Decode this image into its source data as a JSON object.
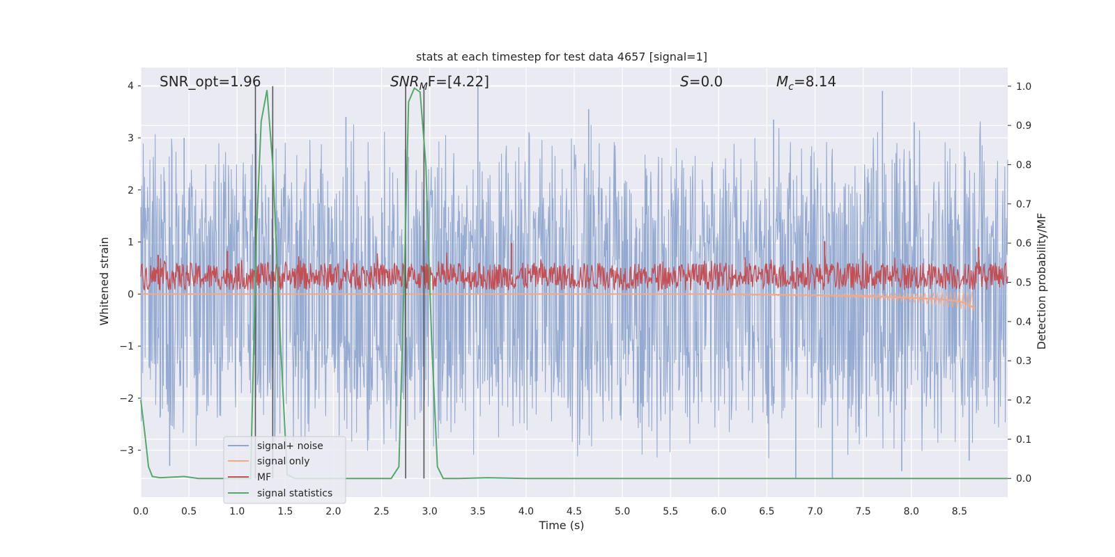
{
  "chart_data": {
    "type": "line",
    "title": "stats at each timestep for test data 4657 [signal=1]",
    "xlabel": "Time (s)",
    "ylabel": "Whitened strain",
    "y2label": "Detection probability/MF",
    "xlim": [
      0.0,
      9.0
    ],
    "ylim": [
      -3.9,
      4.35
    ],
    "y2lim": [
      -0.0475,
      1.0475
    ],
    "xticks": [
      "0.0",
      "0.5",
      "1.0",
      "1.5",
      "2.0",
      "2.5",
      "3.0",
      "3.5",
      "4.0",
      "4.5",
      "5.0",
      "5.5",
      "6.0",
      "6.5",
      "7.0",
      "7.5",
      "8.0",
      "8.5"
    ],
    "yticks": [
      "4",
      "3",
      "2",
      "1",
      "0",
      "−1",
      "−2",
      "−3"
    ],
    "y2ticks": [
      "1.0",
      "0.9",
      "0.8",
      "0.7",
      "0.6",
      "0.5",
      "0.4",
      "0.3",
      "0.2",
      "0.1",
      "0.0"
    ],
    "annotations": {
      "snr_opt": "SNR_opt=1.96",
      "snr_mf_base": "SNR",
      "snr_mf_sub": "M",
      "snr_mf_tail": "F=[4.22]",
      "s_label": "S",
      "s_value": "=0.0",
      "mc_base": "M",
      "mc_sub": "c",
      "mc_value": "=8.14"
    },
    "vertical_lines_x": [
      1.19,
      1.37,
      2.75,
      2.94
    ],
    "legend": {
      "location": "lower-left",
      "entries": [
        {
          "label": "signal+ noise",
          "color": "#8fa6cf"
        },
        {
          "label": "signal only",
          "color": "#f0a98a"
        },
        {
          "label": "MF",
          "color": "#c44e52"
        },
        {
          "label": "signal statistics",
          "color": "#55a868"
        }
      ]
    },
    "series": [
      {
        "name": "signal+ noise",
        "color": "#8fa6cf",
        "axis": "left",
        "description": "dense whitened noise band",
        "envelope_upper": 2.5,
        "envelope_lower": -2.3,
        "core_upper": 1.2,
        "core_lower": -1.2,
        "peaks": [
          [
            0.45,
            3.0
          ],
          [
            2.13,
            3.4
          ],
          [
            3.5,
            4.0
          ],
          [
            4.65,
            3.55
          ],
          [
            6.57,
            3.35
          ],
          [
            7.7,
            3.9
          ],
          [
            8.03,
            3.3
          ],
          [
            0.3,
            -3.3
          ],
          [
            6.8,
            -3.55
          ],
          [
            7.18,
            -3.55
          ],
          [
            7.9,
            -3.4
          ],
          [
            8.6,
            -3.2
          ]
        ]
      },
      {
        "name": "signal only",
        "color": "#f0a98a",
        "axis": "left",
        "x": [
          0.0,
          6.0,
          7.0,
          7.5,
          8.0,
          8.3,
          8.5,
          8.6,
          8.65
        ],
        "values": [
          0.0,
          0.0,
          -0.02,
          -0.04,
          -0.07,
          -0.1,
          -0.14,
          -0.2,
          -0.28
        ]
      },
      {
        "name": "MF",
        "color": "#c44e52",
        "axis": "right",
        "baseline": 0.52,
        "band_upper": 0.55,
        "band_lower": 0.48,
        "peaks": [
          [
            0.18,
            0.57
          ],
          [
            0.9,
            0.58
          ],
          [
            3.85,
            0.6
          ],
          [
            7.1,
            0.605
          ],
          [
            8.7,
            0.59
          ]
        ]
      },
      {
        "name": "signal statistics",
        "color": "#55a868",
        "axis": "right",
        "x": [
          0.0,
          0.04,
          0.08,
          0.12,
          0.2,
          0.3,
          0.45,
          0.6,
          1.0,
          1.14,
          1.2,
          1.25,
          1.31,
          1.37,
          1.45,
          1.52,
          1.6,
          2.0,
          2.6,
          2.68,
          2.74,
          2.78,
          2.84,
          2.9,
          2.96,
          3.02,
          3.08,
          3.14,
          3.3,
          3.6,
          4.0,
          9.0
        ],
        "values": [
          0.2,
          0.12,
          0.03,
          0.005,
          0.002,
          0.003,
          0.005,
          0.0,
          0.0,
          0.0,
          0.62,
          0.91,
          0.99,
          0.8,
          0.35,
          0.01,
          0.0,
          0.0,
          0.0,
          0.03,
          0.55,
          0.96,
          0.995,
          0.985,
          0.8,
          0.35,
          0.03,
          0.0,
          0.0,
          0.002,
          0.0,
          0.0
        ]
      }
    ]
  }
}
